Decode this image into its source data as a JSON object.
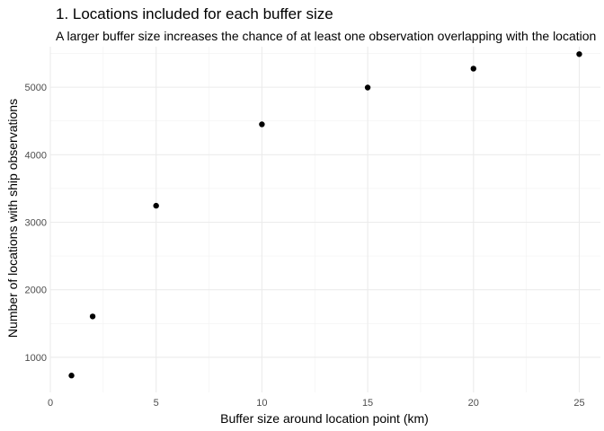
{
  "chart_data": {
    "type": "scatter",
    "title": "1. Locations included for each buffer size",
    "subtitle": "A larger buffer size increases the chance of at least one observation overlapping with the location",
    "xlabel": "Buffer size around location point (km)",
    "ylabel": "Number of locations with ship observations",
    "x": [
      1,
      2,
      5,
      10,
      15,
      20,
      25
    ],
    "y": [
      730,
      1605,
      3245,
      4450,
      4995,
      5275,
      5490
    ],
    "xlim": [
      0,
      26
    ],
    "ylim": [
      480,
      5600
    ],
    "x_ticks": [
      0,
      5,
      10,
      15,
      20,
      25
    ],
    "x_minor_ticks": [
      2.5,
      7.5,
      12.5,
      17.5,
      22.5
    ],
    "y_ticks": [
      1000,
      2000,
      3000,
      4000,
      5000
    ],
    "y_minor_ticks": [
      1500,
      2500,
      3500,
      4500,
      5500
    ],
    "grid": true,
    "legend": "none",
    "point_color": "#000000"
  }
}
